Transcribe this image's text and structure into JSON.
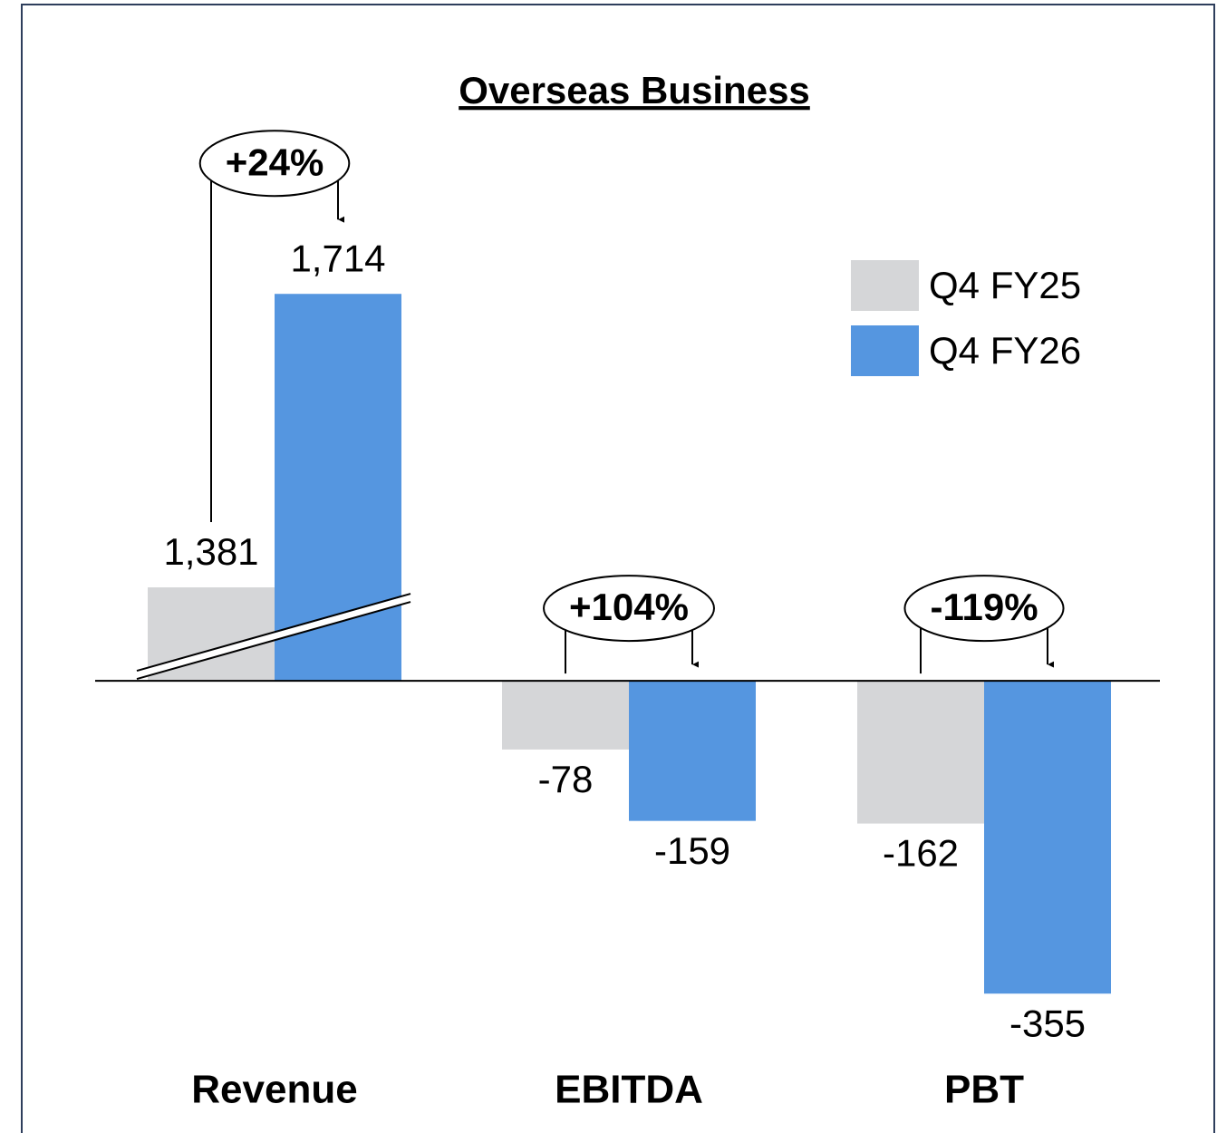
{
  "chart_data": {
    "type": "bar",
    "title": "Overseas Business",
    "categories": [
      "Revenue",
      "EBITDA",
      "PBT"
    ],
    "series": [
      {
        "name": "Q4 FY25",
        "color": "#d5d6d8",
        "values": [
          1381,
          -78,
          -162
        ],
        "value_labels": [
          "1,381",
          "-78",
          "-162"
        ]
      },
      {
        "name": "Q4 FY26",
        "color": "#5596e0",
        "values": [
          1714,
          -159,
          -355
        ],
        "value_labels": [
          "1,714",
          "-159",
          "-355"
        ]
      }
    ],
    "annotations": [
      "+24%",
      "+104%",
      "-119%"
    ],
    "ylim": [
      -400,
      1850
    ],
    "axis_break": [
      0,
      1275
    ],
    "legend": "upper right"
  }
}
